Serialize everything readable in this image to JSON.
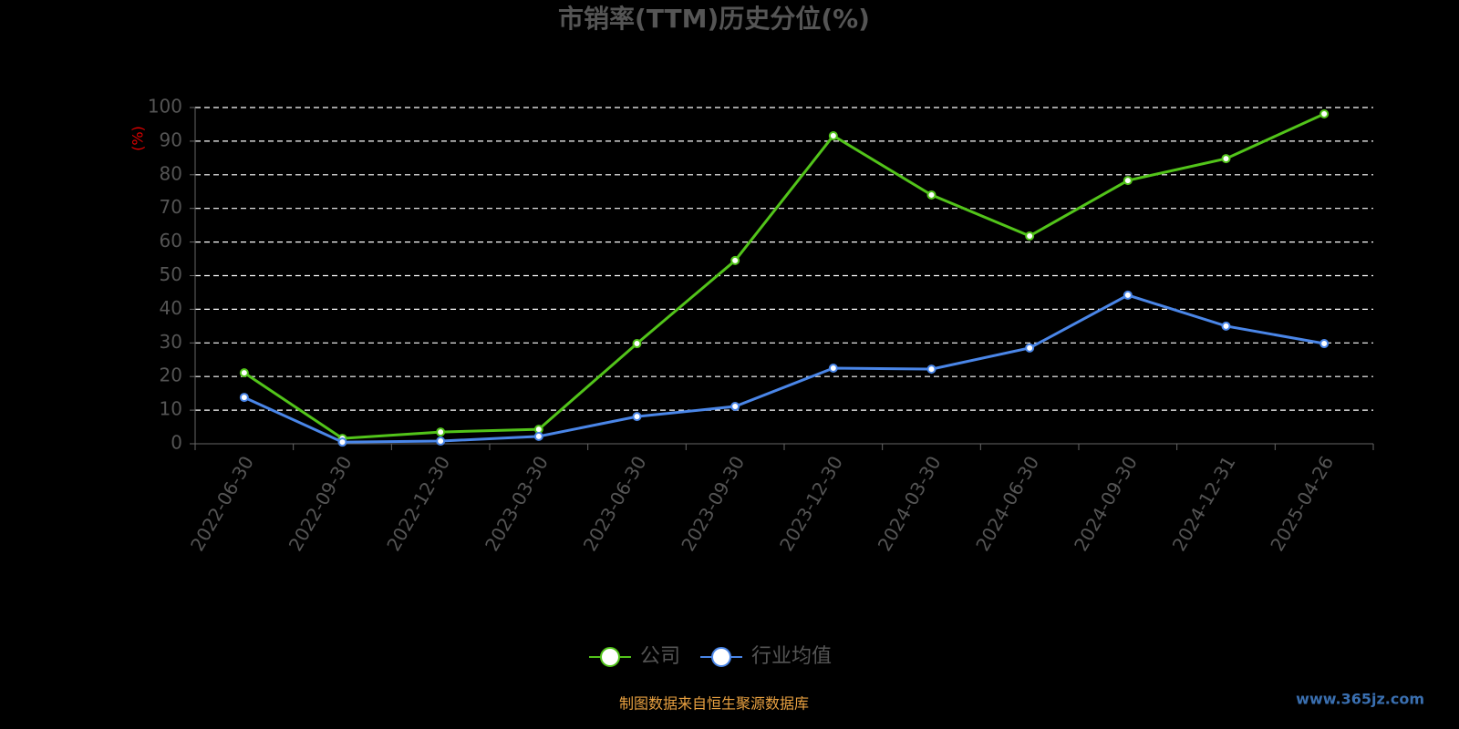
{
  "chart_data": {
    "type": "line",
    "title": "市销率(TTM)历史分位(%)",
    "y_axis_label": "(%)",
    "categories": [
      "2022-06-30",
      "2022-09-30",
      "2022-12-30",
      "2023-03-30",
      "2023-06-30",
      "2023-09-30",
      "2023-12-30",
      "2024-03-30",
      "2024-06-30",
      "2024-09-30",
      "2024-12-31",
      "2025-04-26"
    ],
    "series": [
      {
        "name": "公司",
        "color": "#52c41a",
        "values": [
          21.1,
          1.6,
          3.5,
          4.3,
          29.8,
          54.5,
          91.6,
          74.0,
          61.8,
          78.3,
          84.8,
          98.1
        ]
      },
      {
        "name": "行业均值",
        "color": "#4a86e8",
        "values": [
          13.8,
          0.5,
          0.8,
          2.2,
          8.1,
          11.1,
          22.5,
          22.2,
          28.5,
          44.2,
          35.0,
          29.8
        ]
      }
    ],
    "ylim": [
      0,
      100
    ],
    "yticks": [
      0,
      10,
      20,
      30,
      40,
      50,
      60,
      70,
      80,
      90,
      100
    ],
    "grid": true,
    "source": "制图数据来自恒生聚源数据库",
    "watermark": "www.365jz.com"
  }
}
